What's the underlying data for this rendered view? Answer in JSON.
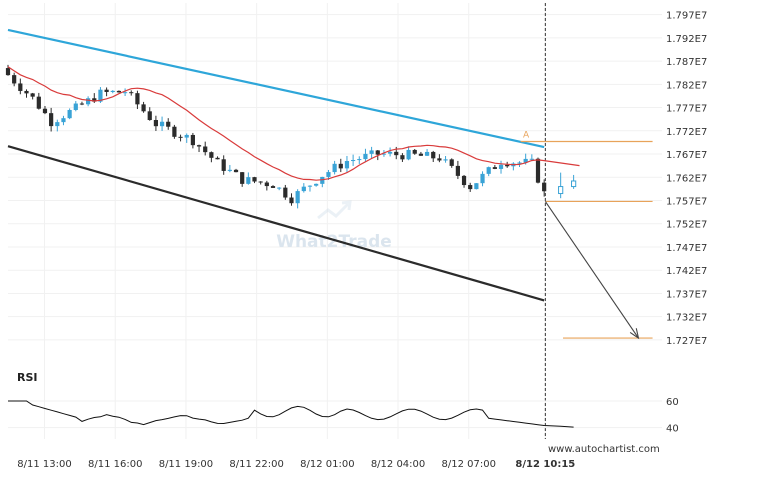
{
  "chart_data": {
    "type": "candlestick",
    "y_ticks": [
      "1.797E7",
      "1.792E7",
      "1.787E7",
      "1.782E7",
      "1.777E7",
      "1.772E7",
      "1.767E7",
      "1.762E7",
      "1.757E7",
      "1.752E7",
      "1.747E7",
      "1.742E7",
      "1.737E7",
      "1.732E7",
      "1.727E7"
    ],
    "y_tick_values": [
      17970000.0,
      17920000.0,
      17870000.0,
      17820000.0,
      17770000.0,
      17720000.0,
      17670000.0,
      17620000.0,
      17570000.0,
      17520000.0,
      17470000.0,
      17420000.0,
      17370000.0,
      17320000.0,
      17270000.0
    ],
    "ylim": [
      17244000.0,
      17995000.0
    ],
    "x_labels": [
      "8/11 13:00",
      "8/11 16:00",
      "8/11 19:00",
      "8/11 22:00",
      "8/12 01:00",
      "8/12 04:00",
      "8/12 07:00",
      "8/12 10:15"
    ],
    "x_label_hours": [
      0,
      3,
      6,
      9,
      12,
      15,
      18,
      21.25
    ],
    "xlim_hours": [
      -1.55,
      26.2
    ],
    "rsi": {
      "title": "RSI",
      "levels": [
        "60",
        "40"
      ],
      "level_values": [
        60,
        40
      ],
      "ylim": [
        33,
        72
      ]
    },
    "watermark": "What2Trade",
    "source": "www.autochartist.com",
    "pattern_label": "A",
    "colors": {
      "up": "#3aa3d6",
      "down": "#2b2b2b",
      "ma": "#d93b3b",
      "resistance": "#2ea6d9",
      "support": "#2b2b2b",
      "level": "#e8a35a",
      "projection": "#444444"
    },
    "resistance_line": [
      [
        -1.55,
        17937000.0
      ],
      [
        21.2,
        17685000.0
      ]
    ],
    "support_line": [
      [
        -1.55,
        17687000.0
      ],
      [
        21.2,
        17355000.0
      ]
    ],
    "level_resistance": {
      "value": 17697000.0,
      "from_hour": 20.2,
      "to_hour": 25.8
    },
    "level_entry": {
      "value": 17568000.0,
      "from_hour": 21.25,
      "to_hour": 25.8
    },
    "level_target": {
      "value": 17274000.0,
      "from_hour": 22.0,
      "to_hour": 25.8
    },
    "projection": {
      "from": [
        21.25,
        17568000.0
      ],
      "to": [
        25.2,
        17274000.0
      ]
    }
  }
}
